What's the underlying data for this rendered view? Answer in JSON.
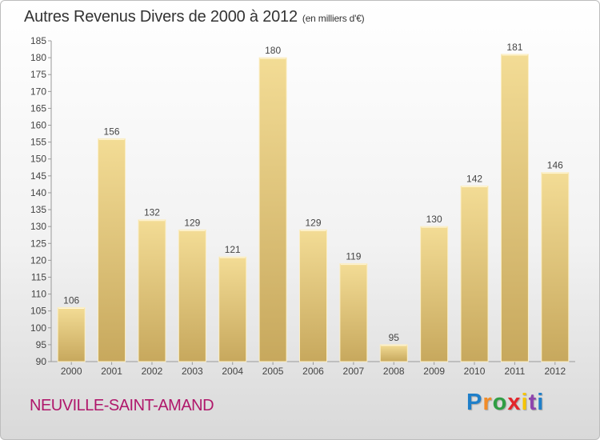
{
  "header": {
    "title": "Autres Revenus Divers de 2000 à 2012",
    "subtitle": "(en milliers d'€)"
  },
  "footer": {
    "place": "NEUVILLE-SAINT-AMAND",
    "brand": "Proxiti",
    "brand_colors": [
      "#1f7fc9",
      "#f28c28",
      "#2f9e44",
      "#e3262b",
      "#f6c500",
      "#8e44ad",
      "#1f7fc9"
    ]
  },
  "colors": {
    "place_text": "#b0176b",
    "bar_light": "#f3dc95",
    "bar_dark": "#c7a85d"
  },
  "chart_data": {
    "type": "bar",
    "categories": [
      "2000",
      "2001",
      "2002",
      "2003",
      "2004",
      "2005",
      "2006",
      "2007",
      "2008",
      "2009",
      "2010",
      "2011",
      "2012"
    ],
    "values": [
      106,
      156,
      132,
      129,
      121,
      180,
      129,
      119,
      95,
      130,
      142,
      181,
      146
    ],
    "ylim": [
      90,
      185
    ],
    "ytick_step": 5,
    "grid": false
  }
}
